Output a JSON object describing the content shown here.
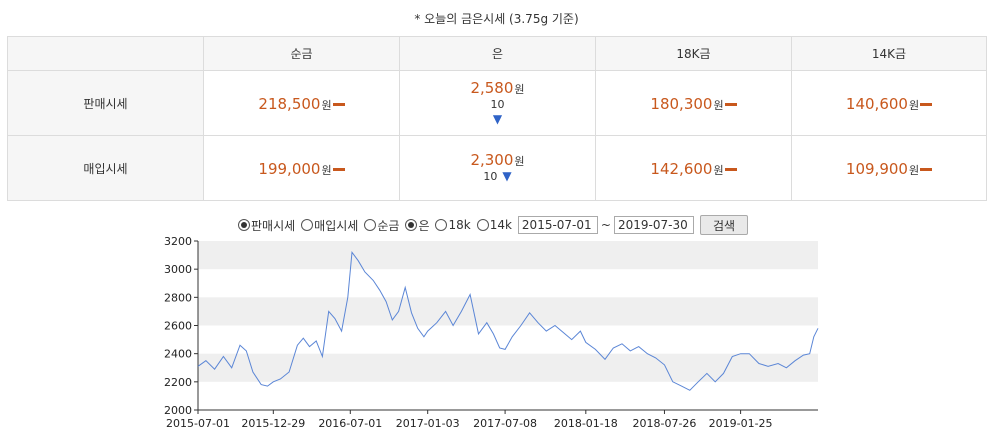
{
  "title": "* 오늘의 금은시세 (3.75g 기준)",
  "table": {
    "columns": [
      "순금",
      "은",
      "18K금",
      "14K금"
    ],
    "rows": [
      {
        "label": "판매시세",
        "cells": [
          {
            "price": "218,500",
            "unit": "원",
            "change": "",
            "dir": "flat"
          },
          {
            "price": "2,580",
            "unit": "원",
            "change": "10",
            "dir": "down"
          },
          {
            "price": "180,300",
            "unit": "원",
            "change": "",
            "dir": "flat"
          },
          {
            "price": "140,600",
            "unit": "원",
            "change": "",
            "dir": "flat"
          }
        ]
      },
      {
        "label": "매입시세",
        "cells": [
          {
            "price": "199,000",
            "unit": "원",
            "change": "",
            "dir": "flat"
          },
          {
            "price": "2,300",
            "unit": "원",
            "change": "10",
            "dir": "down"
          },
          {
            "price": "142,600",
            "unit": "원",
            "change": "",
            "dir": "flat"
          },
          {
            "price": "109,900",
            "unit": "원",
            "change": "",
            "dir": "flat"
          }
        ]
      }
    ],
    "down_symbol": "▼"
  },
  "form": {
    "price_type_options": [
      {
        "label": "판매시세",
        "checked": true
      },
      {
        "label": "매입시세",
        "checked": false
      }
    ],
    "metal_options": [
      {
        "label": "순금",
        "checked": false
      },
      {
        "label": "은",
        "checked": true
      },
      {
        "label": "18k",
        "checked": false
      },
      {
        "label": "14k",
        "checked": false
      }
    ],
    "start_date": "2015-07-01",
    "separator": "~",
    "end_date": "2019-07-30",
    "search_label": "검색"
  },
  "colors": {
    "price": "#c8581d",
    "down": "#2f63c7",
    "line": "#5b86d6",
    "band": "#efefef"
  },
  "chart_data": {
    "type": "line",
    "title": "",
    "xlabel": "",
    "ylabel": "",
    "ylim": [
      2000,
      3200
    ],
    "yticks": [
      2000,
      2200,
      2400,
      2600,
      2800,
      3000,
      3200
    ],
    "xticks": [
      "2015-07-01",
      "2015-12-29",
      "2016-07-01",
      "2017-01-03",
      "2017-07-08",
      "2018-01-18",
      "2018-07-26",
      "2019-01-25"
    ],
    "x_range": [
      "2015-07-01",
      "2019-07-30"
    ],
    "grid": "alternating horizontal bands",
    "series": [
      {
        "points": [
          [
            "2015-07-01",
            2310
          ],
          [
            "2015-07-20",
            2350
          ],
          [
            "2015-08-10",
            2290
          ],
          [
            "2015-08-31",
            2380
          ],
          [
            "2015-09-20",
            2300
          ],
          [
            "2015-10-10",
            2460
          ],
          [
            "2015-10-25",
            2420
          ],
          [
            "2015-11-10",
            2270
          ],
          [
            "2015-11-30",
            2180
          ],
          [
            "2015-12-15",
            2170
          ],
          [
            "2015-12-29",
            2200
          ],
          [
            "2016-01-15",
            2220
          ],
          [
            "2016-02-05",
            2270
          ],
          [
            "2016-02-25",
            2460
          ],
          [
            "2016-03-10",
            2510
          ],
          [
            "2016-03-25",
            2450
          ],
          [
            "2016-04-10",
            2490
          ],
          [
            "2016-04-25",
            2380
          ],
          [
            "2016-05-10",
            2700
          ],
          [
            "2016-05-25",
            2650
          ],
          [
            "2016-06-10",
            2560
          ],
          [
            "2016-06-25",
            2800
          ],
          [
            "2016-07-05",
            3120
          ],
          [
            "2016-07-20",
            3060
          ],
          [
            "2016-08-05",
            2980
          ],
          [
            "2016-08-25",
            2920
          ],
          [
            "2016-09-10",
            2850
          ],
          [
            "2016-09-25",
            2770
          ],
          [
            "2016-10-10",
            2640
          ],
          [
            "2016-10-25",
            2700
          ],
          [
            "2016-11-10",
            2870
          ],
          [
            "2016-11-25",
            2690
          ],
          [
            "2016-12-10",
            2580
          ],
          [
            "2016-12-25",
            2520
          ],
          [
            "2017-01-03",
            2560
          ],
          [
            "2017-01-25",
            2620
          ],
          [
            "2017-02-15",
            2700
          ],
          [
            "2017-03-05",
            2600
          ],
          [
            "2017-03-25",
            2700
          ],
          [
            "2017-04-15",
            2820
          ],
          [
            "2017-05-05",
            2540
          ],
          [
            "2017-05-25",
            2620
          ],
          [
            "2017-06-10",
            2540
          ],
          [
            "2017-06-25",
            2440
          ],
          [
            "2017-07-08",
            2430
          ],
          [
            "2017-07-25",
            2520
          ],
          [
            "2017-08-15",
            2600
          ],
          [
            "2017-09-05",
            2690
          ],
          [
            "2017-09-25",
            2620
          ],
          [
            "2017-10-15",
            2560
          ],
          [
            "2017-11-05",
            2600
          ],
          [
            "2017-11-25",
            2550
          ],
          [
            "2017-12-15",
            2500
          ],
          [
            "2018-01-05",
            2560
          ],
          [
            "2018-01-18",
            2480
          ],
          [
            "2018-02-10",
            2430
          ],
          [
            "2018-03-05",
            2360
          ],
          [
            "2018-03-25",
            2440
          ],
          [
            "2018-04-15",
            2470
          ],
          [
            "2018-05-05",
            2420
          ],
          [
            "2018-05-25",
            2450
          ],
          [
            "2018-06-15",
            2400
          ],
          [
            "2018-07-05",
            2370
          ],
          [
            "2018-07-26",
            2320
          ],
          [
            "2018-08-15",
            2200
          ],
          [
            "2018-09-05",
            2170
          ],
          [
            "2018-09-25",
            2140
          ],
          [
            "2018-10-15",
            2200
          ],
          [
            "2018-11-05",
            2260
          ],
          [
            "2018-11-25",
            2200
          ],
          [
            "2018-12-15",
            2260
          ],
          [
            "2019-01-05",
            2380
          ],
          [
            "2019-01-25",
            2400
          ],
          [
            "2019-02-15",
            2400
          ],
          [
            "2019-03-10",
            2330
          ],
          [
            "2019-04-01",
            2310
          ],
          [
            "2019-04-25",
            2330
          ],
          [
            "2019-05-15",
            2300
          ],
          [
            "2019-06-05",
            2350
          ],
          [
            "2019-06-25",
            2390
          ],
          [
            "2019-07-10",
            2400
          ],
          [
            "2019-07-20",
            2520
          ],
          [
            "2019-07-30",
            2580
          ]
        ]
      }
    ]
  }
}
